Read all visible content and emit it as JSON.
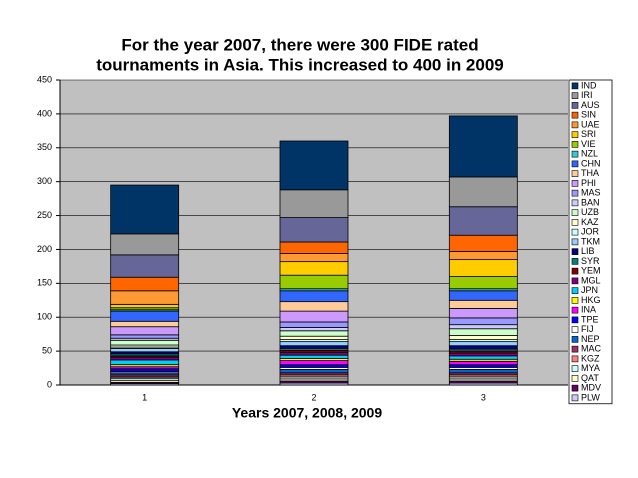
{
  "chart_data": {
    "type": "stacked_bar",
    "title": [
      "For the year 2007, there were 300 FIDE rated",
      "tournaments in Asia. This increased to 400 in 2009"
    ],
    "x_label": "Years 2007, 2008, 2009",
    "categories": [
      "1",
      "2",
      "3"
    ],
    "ylim": [
      0,
      450
    ],
    "yticks": [
      0,
      50,
      100,
      150,
      200,
      250,
      300,
      350,
      400,
      450
    ],
    "grid": true,
    "series": [
      {
        "name": "IND",
        "color": "#003366",
        "values": [
          72,
          72,
          90
        ]
      },
      {
        "name": "IRI",
        "color": "#999999",
        "values": [
          31,
          41,
          44
        ]
      },
      {
        "name": "AUS",
        "color": "#666699",
        "values": [
          33,
          36,
          42
        ]
      },
      {
        "name": "SIN",
        "color": "#FF6600",
        "values": [
          20,
          17,
          24
        ]
      },
      {
        "name": "UAE",
        "color": "#FF9933",
        "values": [
          20,
          12,
          12
        ]
      },
      {
        "name": "SRI",
        "color": "#FFCC00",
        "values": [
          5,
          20,
          25
        ]
      },
      {
        "name": "VIE",
        "color": "#99CC00",
        "values": [
          3,
          20,
          18
        ]
      },
      {
        "name": "NZL",
        "color": "#33CCCC",
        "values": [
          2,
          3,
          3
        ]
      },
      {
        "name": "CHN",
        "color": "#3366FF",
        "values": [
          15,
          16,
          14
        ]
      },
      {
        "name": "THA",
        "color": "#FFCC99",
        "values": [
          8,
          14,
          12
        ]
      },
      {
        "name": "PHI",
        "color": "#CC99FF",
        "values": [
          12,
          16,
          14
        ]
      },
      {
        "name": "MAS",
        "color": "#9999FF",
        "values": [
          5,
          8,
          10
        ]
      },
      {
        "name": "BAN",
        "color": "#CCCCFF",
        "values": [
          3,
          5,
          6
        ]
      },
      {
        "name": "UZB",
        "color": "#CCFFCC",
        "values": [
          7,
          8,
          10
        ]
      },
      {
        "name": "KAZ",
        "color": "#FFFFCC",
        "values": [
          3,
          5,
          6
        ]
      },
      {
        "name": "JOR",
        "color": "#CCFFFF",
        "values": [
          2,
          3,
          3
        ]
      },
      {
        "name": "TKM",
        "color": "#99CCFF",
        "values": [
          5,
          6,
          6
        ]
      },
      {
        "name": "LIB",
        "color": "#000080",
        "values": [
          3,
          4,
          5
        ]
      },
      {
        "name": "SYR",
        "color": "#008080",
        "values": [
          3,
          3,
          3
        ]
      },
      {
        "name": "YEM",
        "color": "#800000",
        "values": [
          2,
          3,
          3
        ]
      },
      {
        "name": "MGL",
        "color": "#800080",
        "values": [
          4,
          4,
          4
        ]
      },
      {
        "name": "JPN",
        "color": "#00CCFF",
        "values": [
          7,
          5,
          5
        ]
      },
      {
        "name": "HKG",
        "color": "#FFFF00",
        "values": [
          3,
          3,
          3
        ]
      },
      {
        "name": "INA",
        "color": "#FF00FF",
        "values": [
          3,
          6,
          5
        ]
      },
      {
        "name": "TPE",
        "color": "#0000FF",
        "values": [
          4,
          4,
          4
        ]
      },
      {
        "name": "FIJ",
        "color": "#FFFFFF",
        "values": [
          2,
          3,
          3
        ]
      },
      {
        "name": "NEP",
        "color": "#0066CC",
        "values": [
          3,
          5,
          5
        ]
      },
      {
        "name": "MAC",
        "color": "#993366",
        "values": [
          3,
          3,
          3
        ]
      },
      {
        "name": "KGZ",
        "color": "#FF8080",
        "values": [
          2,
          3,
          3
        ]
      },
      {
        "name": "MYA",
        "color": "#CCFFFF",
        "values": [
          3,
          3,
          3
        ]
      },
      {
        "name": "QAT",
        "color": "#FFFFCC",
        "values": [
          3,
          3,
          3
        ]
      },
      {
        "name": "MDV",
        "color": "#660066",
        "values": [
          2,
          3,
          3
        ]
      },
      {
        "name": "PLW",
        "color": "#CCCCFF",
        "values": [
          2,
          3,
          3
        ]
      }
    ]
  }
}
